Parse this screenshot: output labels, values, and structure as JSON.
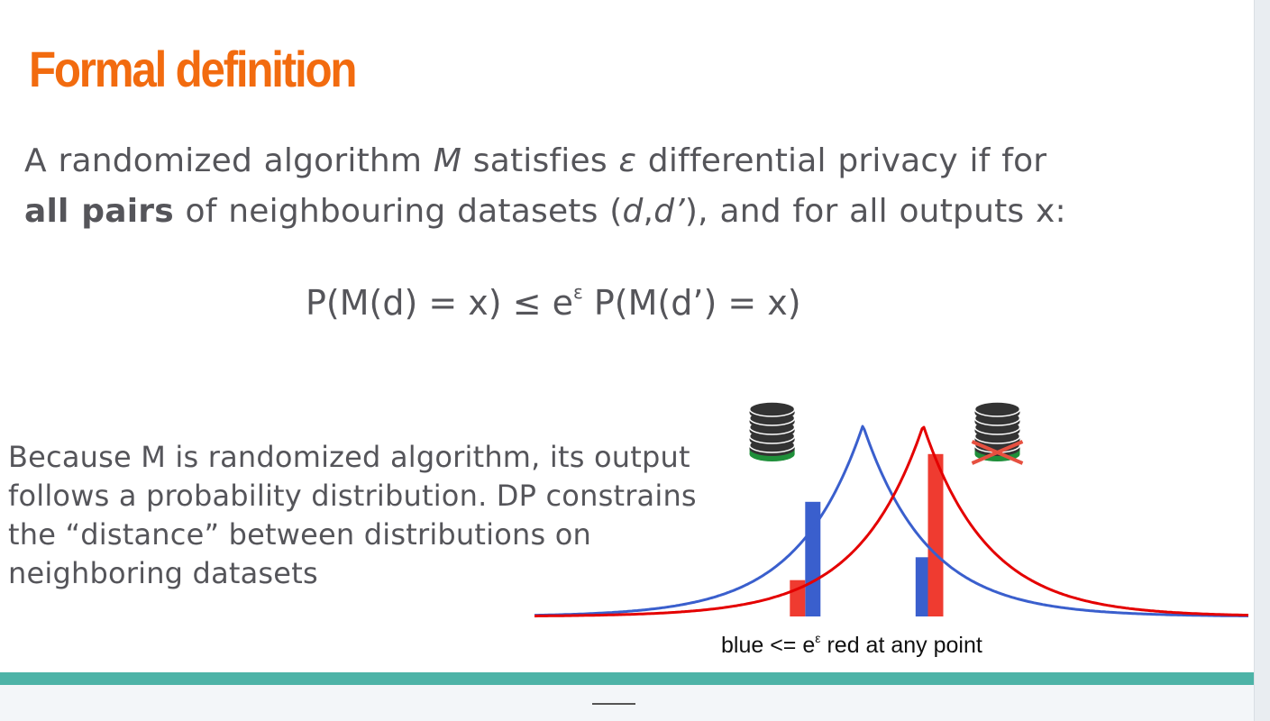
{
  "slide": {
    "title": "Formal definition",
    "definition": {
      "p1": "A randomized algorithm ",
      "m": "M",
      "p2": " satisfies ",
      "eps": "ε",
      "p3": " differential privacy if for",
      "bold": "all pairs",
      "p4": " of neighbouring datasets (",
      "d": "d",
      "comma": ",",
      "dprime": "d’",
      "p5": "), and for all outputs x:"
    },
    "formula": {
      "left": "P(M(d) = x) ≤ e",
      "sup": "ε",
      "right": " P(M(d’) = x)"
    },
    "explanation": "Because M is randomized algorithm, its output follows a probability distribution. DP constrains the “distance” between distributions on neighboring datasets",
    "caption": {
      "left": "blue <= e",
      "sup": "ε",
      "right": " red at any point"
    }
  },
  "colors": {
    "title": "#f26b0f",
    "text": "#55555a",
    "blue": "#3a5fcd",
    "red": "#e40000",
    "teal": "#4db3a7",
    "db_dark": "#333333",
    "db_green": "#1f8f3a",
    "cross": "#e65040"
  },
  "chart_data": {
    "type": "line",
    "series": [
      {
        "color": "blue",
        "peak_x": 0.462,
        "shape": "laplace"
      },
      {
        "color": "red",
        "peak_x": 0.545,
        "shape": "laplace"
      }
    ],
    "bars": [
      {
        "x": 0.393,
        "series": "blue",
        "height": 0.6
      },
      {
        "x": 0.372,
        "series": "red",
        "height": 0.19
      },
      {
        "x": 0.545,
        "series": "blue",
        "height": 0.31
      },
      {
        "x": 0.562,
        "series": "red",
        "height": 0.85
      }
    ],
    "icons": [
      {
        "name": "database-icon",
        "crossed": false,
        "x": 0.337
      },
      {
        "name": "database-icon",
        "crossed": true,
        "x": 0.647
      }
    ]
  }
}
